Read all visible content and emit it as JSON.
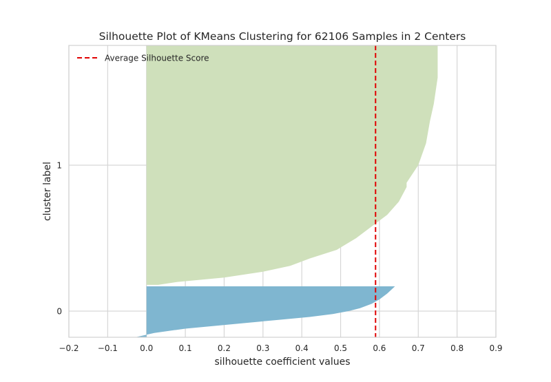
{
  "chart_data": {
    "type": "area",
    "title": "Silhouette Plot of KMeans Clustering for 62106 Samples in 2 Centers",
    "xlabel": "silhouette coefficient values",
    "ylabel": "cluster label",
    "xlim": [
      -0.2,
      0.9
    ],
    "x_ticks": [
      -0.2,
      -0.1,
      0.0,
      0.1,
      0.2,
      0.3,
      0.4,
      0.5,
      0.6,
      0.7,
      0.8,
      0.9
    ],
    "x_tick_labels": [
      "−0.2",
      "−0.1",
      "0.0",
      "0.1",
      "0.2",
      "0.3",
      "0.4",
      "0.5",
      "0.6",
      "0.7",
      "0.8",
      "0.9"
    ],
    "y_ticks": [
      0,
      1
    ],
    "y_tick_labels": [
      "0",
      "1"
    ],
    "grid": true,
    "legend_position": "top-left",
    "average_silhouette_score": 0.59,
    "average_line_color": "#e00000",
    "legend": [
      {
        "label": "Average Silhouette Score",
        "style": "dashed",
        "color": "#e00000"
      }
    ],
    "series": [
      {
        "cluster": "0",
        "color": "#7fb6d0",
        "points": [
          {
            "y": -0.18,
            "x": -0.03
          },
          {
            "y": -0.15,
            "x": 0.02
          },
          {
            "y": -0.12,
            "x": 0.1
          },
          {
            "y": -0.1,
            "x": 0.18
          },
          {
            "y": -0.08,
            "x": 0.26
          },
          {
            "y": -0.06,
            "x": 0.34
          },
          {
            "y": -0.04,
            "x": 0.42
          },
          {
            "y": -0.02,
            "x": 0.48
          },
          {
            "y": 0.0,
            "x": 0.52
          },
          {
            "y": 0.02,
            "x": 0.55
          },
          {
            "y": 0.05,
            "x": 0.58
          },
          {
            "y": 0.08,
            "x": 0.6
          },
          {
            "y": 0.12,
            "x": 0.62
          },
          {
            "y": 0.17,
            "x": 0.64
          }
        ]
      },
      {
        "cluster": "1",
        "color": "#cfe0bb",
        "points": [
          {
            "y": 0.18,
            "x": 0.03
          },
          {
            "y": 0.2,
            "x": 0.08
          },
          {
            "y": 0.23,
            "x": 0.2
          },
          {
            "y": 0.27,
            "x": 0.3
          },
          {
            "y": 0.31,
            "x": 0.37
          },
          {
            "y": 0.36,
            "x": 0.42
          },
          {
            "y": 0.42,
            "x": 0.49
          },
          {
            "y": 0.5,
            "x": 0.54
          },
          {
            "y": 0.58,
            "x": 0.58
          },
          {
            "y": 0.66,
            "x": 0.62
          },
          {
            "y": 0.75,
            "x": 0.65
          },
          {
            "y": 0.85,
            "x": 0.67
          },
          {
            "y": 0.88,
            "x": 0.67
          },
          {
            "y": 1.0,
            "x": 0.7
          },
          {
            "y": 1.15,
            "x": 0.72
          },
          {
            "y": 1.3,
            "x": 0.73
          },
          {
            "y": 1.42,
            "x": 0.74
          },
          {
            "y": 1.6,
            "x": 0.75
          },
          {
            "y": 1.82,
            "x": 0.75
          }
        ]
      }
    ]
  }
}
